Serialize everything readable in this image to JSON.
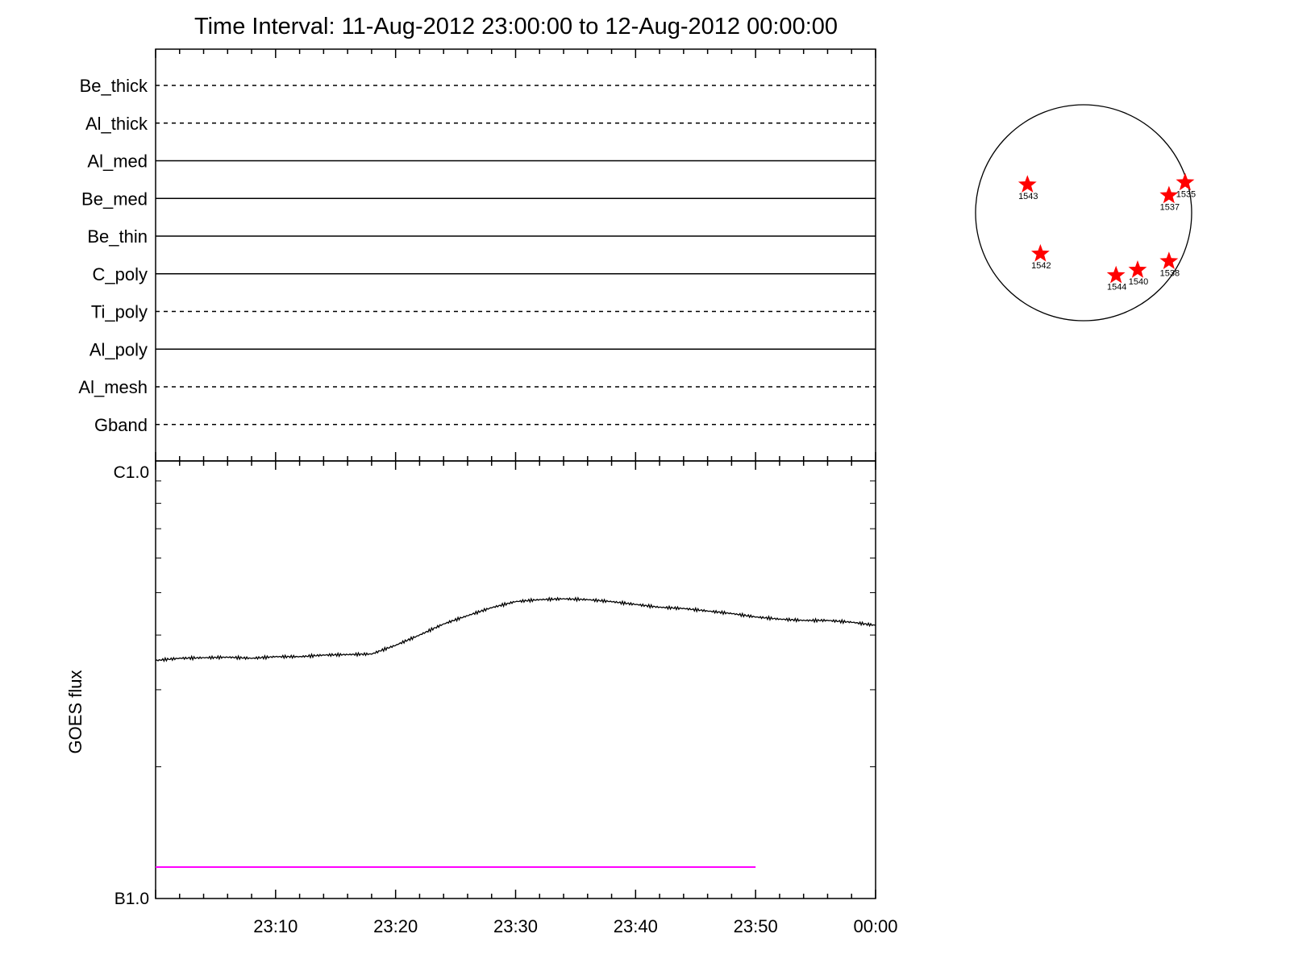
{
  "title": "Time Interval: 11-Aug-2012 23:00:00 to 12-Aug-2012 00:00:00",
  "chart_data": [
    {
      "type": "line",
      "name": "filter-timeline",
      "x_range": [
        "23:00",
        "00:00"
      ],
      "channels": [
        {
          "label": "Be_thick",
          "style": "dashed"
        },
        {
          "label": "Al_thick",
          "style": "dashed"
        },
        {
          "label": "Al_med",
          "style": "solid"
        },
        {
          "label": "Be_med",
          "style": "solid"
        },
        {
          "label": "Be_thin",
          "style": "solid"
        },
        {
          "label": "C_poly",
          "style": "solid"
        },
        {
          "label": "Ti_poly",
          "style": "dashed"
        },
        {
          "label": "Al_poly",
          "style": "solid"
        },
        {
          "label": "Al_mesh",
          "style": "dashed"
        },
        {
          "label": "Gband",
          "style": "dashed"
        }
      ]
    },
    {
      "type": "line",
      "name": "goes-flux",
      "ylabel": "GOES flux",
      "y_scale": "log",
      "ylim": [
        1e-07,
        1e-06
      ],
      "y_tick_labels": [
        "B1.0",
        "C1.0"
      ],
      "x_tick_labels": [
        "23:10",
        "23:20",
        "23:30",
        "23:40",
        "23:50",
        "00:00"
      ],
      "x_minutes": [
        0,
        2,
        4,
        6,
        8,
        10,
        12,
        14,
        16,
        18,
        20,
        22,
        24,
        26,
        28,
        30,
        32,
        34,
        36,
        38,
        40,
        42,
        44,
        46,
        48,
        50,
        52,
        54,
        56,
        58,
        60
      ],
      "series": [
        {
          "color": "#000000",
          "values": [
            3.5e-07,
            3.54e-07,
            3.55e-07,
            3.56e-07,
            3.54e-07,
            3.57e-07,
            3.57e-07,
            3.6e-07,
            3.61e-07,
            3.62e-07,
            3.79e-07,
            4e-07,
            4.24e-07,
            4.43e-07,
            4.62e-07,
            4.77e-07,
            4.82e-07,
            4.84e-07,
            4.82e-07,
            4.77e-07,
            4.7e-07,
            4.63e-07,
            4.6e-07,
            4.54e-07,
            4.48e-07,
            4.4e-07,
            4.35e-07,
            4.32e-07,
            4.32e-07,
            4.28e-07,
            4.21e-07
          ]
        },
        {
          "color": "#ff00ff",
          "x_range_minutes": [
            0,
            50
          ],
          "values": [
            1.18e-07,
            1.18e-07
          ]
        }
      ]
    },
    {
      "type": "scatter",
      "name": "solar-disk-map",
      "marker_color": "#ff0000",
      "points": [
        {
          "label": "1543",
          "x": -0.52,
          "y": 0.26
        },
        {
          "label": "1537",
          "x": 0.79,
          "y": 0.16
        },
        {
          "label": "1535",
          "x": 0.94,
          "y": 0.28
        },
        {
          "label": "1542",
          "x": -0.4,
          "y": -0.38
        },
        {
          "label": "1544",
          "x": 0.3,
          "y": -0.58
        },
        {
          "label": "1540",
          "x": 0.5,
          "y": -0.53
        },
        {
          "label": "1538",
          "x": 0.79,
          "y": -0.45
        }
      ]
    }
  ]
}
